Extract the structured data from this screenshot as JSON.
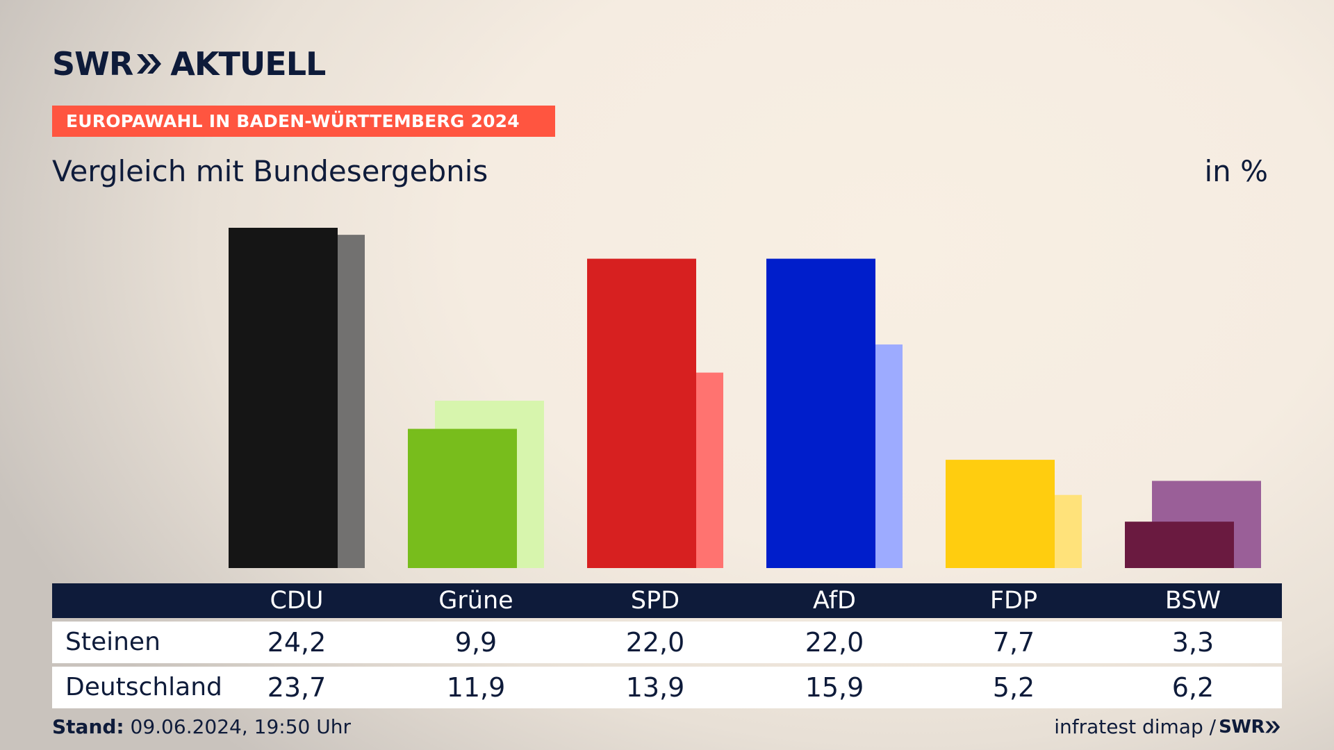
{
  "brand": {
    "logo_text_1": "SWR",
    "logo_text_2": "AKTUELL"
  },
  "banner": "EUROPAWAHL IN BADEN-WÜRTTEMBERG 2024",
  "subtitle": "Vergleich mit Bundesergebnis",
  "unit": "in %",
  "footer": {
    "stand_label": "Stand:",
    "stand_value": "09.06.2024, 19:50 Uhr",
    "source": "infratest dimap /",
    "source_logo": "SWR"
  },
  "colors": {
    "navy": "#0e1b3a",
    "banner": "#ff5540",
    "parties": {
      "CDU": {
        "primary": "#151515",
        "secondary": "#727170"
      },
      "Grüne": {
        "primary": "#78bd1c",
        "secondary": "#d7f5ad"
      },
      "SPD": {
        "primary": "#d72020",
        "secondary": "#ff7370"
      },
      "AfD": {
        "primary": "#001ecb",
        "secondary": "#9dabff"
      },
      "FDP": {
        "primary": "#ffcd0f",
        "secondary": "#ffe27a"
      },
      "BSW": {
        "primary": "#6a1a40",
        "secondary": "#9a5f98"
      }
    }
  },
  "chart_data": {
    "type": "bar",
    "title": "Vergleich mit Bundesergebnis",
    "unit": "in %",
    "categories": [
      "CDU",
      "Grüne",
      "SPD",
      "AfD",
      "FDP",
      "BSW"
    ],
    "series": [
      {
        "name": "Steinen",
        "values": [
          24.2,
          9.9,
          22.0,
          22.0,
          7.7,
          3.3
        ]
      },
      {
        "name": "Deutschland",
        "values": [
          23.7,
          11.9,
          13.9,
          15.9,
          5.2,
          6.2
        ]
      }
    ],
    "ylim": [
      0,
      24.2
    ],
    "grid": false,
    "legend": "table below chart"
  },
  "table": {
    "headers": [
      "CDU",
      "Grüne",
      "SPD",
      "AfD",
      "FDP",
      "BSW"
    ],
    "rows": [
      {
        "label": "Steinen",
        "cells": [
          "24,2",
          "9,9",
          "22,0",
          "22,0",
          "7,7",
          "3,3"
        ]
      },
      {
        "label": "Deutschland",
        "cells": [
          "23,7",
          "11,9",
          "13,9",
          "15,9",
          "5,2",
          "6,2"
        ]
      }
    ]
  }
}
